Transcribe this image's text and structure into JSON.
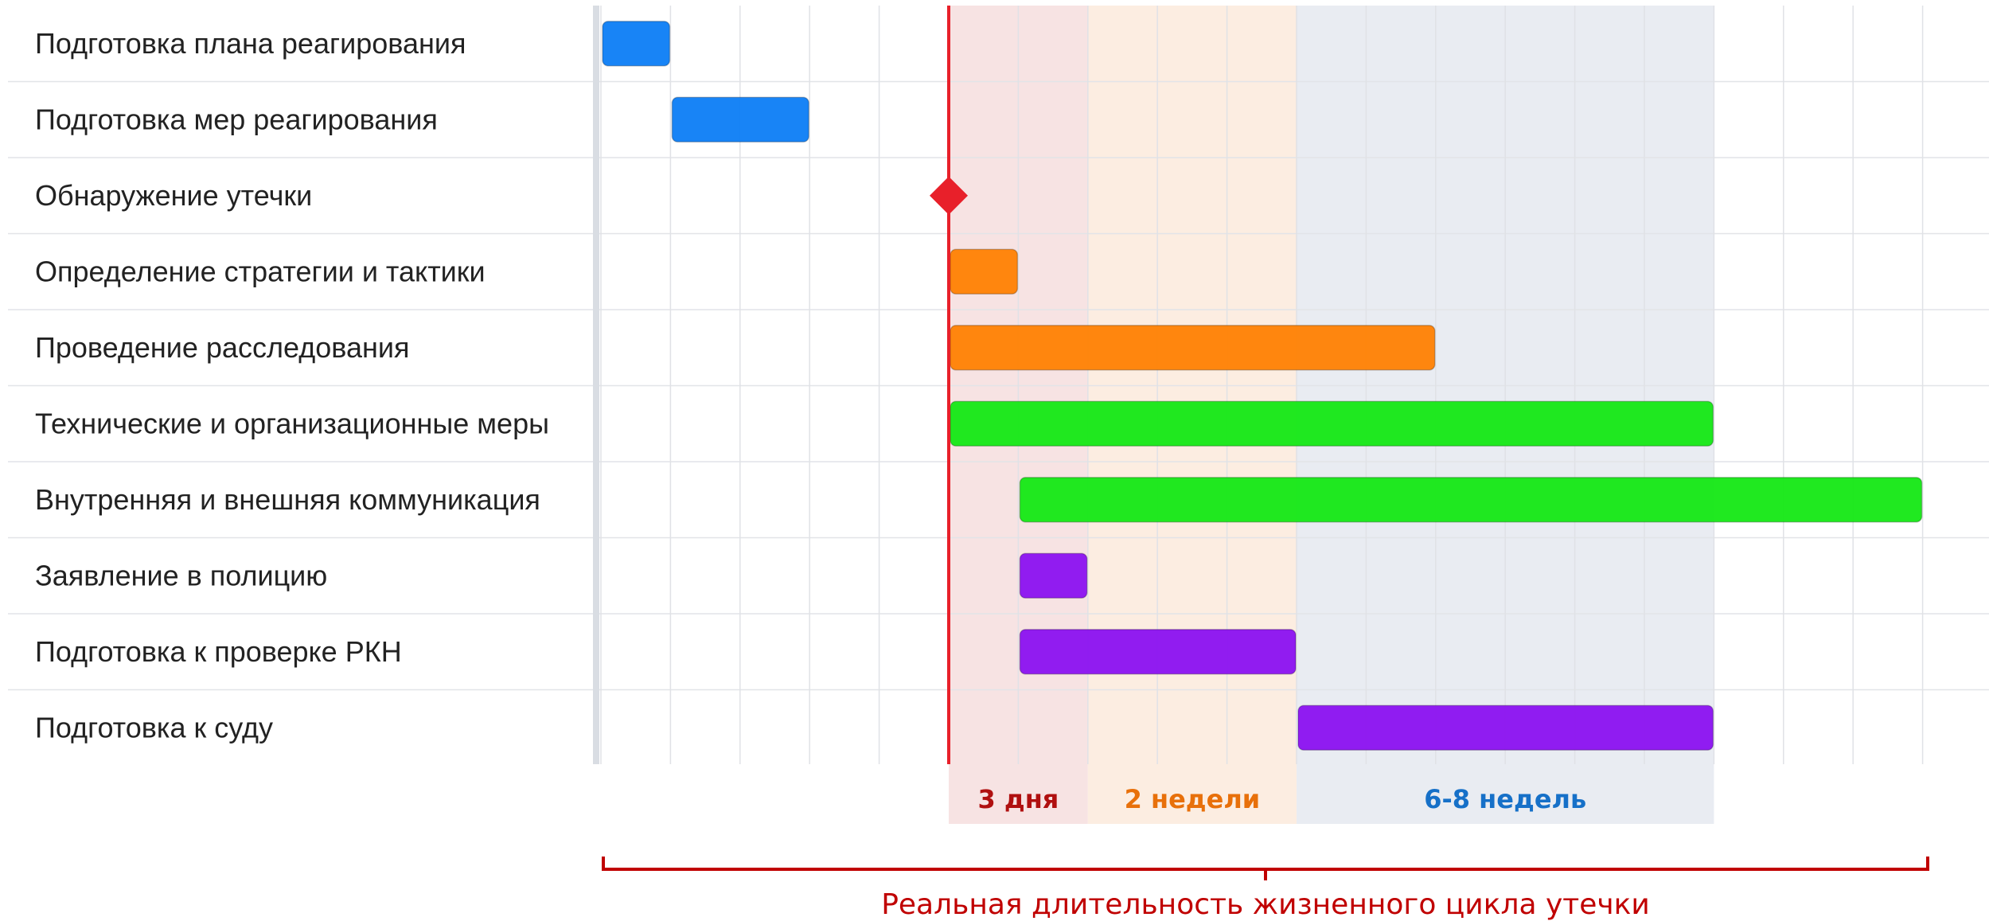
{
  "chart_data": {
    "type": "gantt",
    "x_units": "columns",
    "x_range": [
      0,
      20
    ],
    "grid": true,
    "tasks": [
      {
        "label": "Подготовка плана реагирования",
        "start": 0,
        "end": 1,
        "color": "#0a7cf5",
        "kind": "bar"
      },
      {
        "label": "Подготовка мер реагирования",
        "start": 1,
        "end": 3,
        "color": "#0a7cf5",
        "kind": "bar"
      },
      {
        "label": "Обнаружение утечки",
        "start": 5,
        "end": 5,
        "color": "#e8202a",
        "kind": "milestone"
      },
      {
        "label": "Определение стратегии и тактики",
        "start": 5,
        "end": 6,
        "color": "#ff7f00",
        "kind": "bar"
      },
      {
        "label": "Проведение расследования",
        "start": 5,
        "end": 12,
        "color": "#ff7f00",
        "kind": "bar"
      },
      {
        "label": "Технические и организационные меры",
        "start": 5,
        "end": 16,
        "color": "#12e812",
        "kind": "bar"
      },
      {
        "label": "Внутренняя и внешняя коммуникация",
        "start": 6,
        "end": 19,
        "color": "#12e812",
        "kind": "bar"
      },
      {
        "label": "Заявление в полицию",
        "start": 6,
        "end": 7,
        "color": "#8a0ff0",
        "kind": "bar"
      },
      {
        "label": "Подготовка к проверке РКН",
        "start": 6,
        "end": 10,
        "color": "#8a0ff0",
        "kind": "bar"
      },
      {
        "label": "Подготовка к суду",
        "start": 10,
        "end": 16,
        "color": "#8a0ff0",
        "kind": "bar"
      }
    ],
    "phases": [
      {
        "label": "3 дня",
        "start": 5,
        "end": 7,
        "fill": "#f7e3e3",
        "text_color": "#b01010"
      },
      {
        "label": "2 недели",
        "start": 7,
        "end": 10,
        "fill": "#fcede1",
        "text_color": "#e8700a"
      },
      {
        "label": "6-8 недель",
        "start": 10,
        "end": 16,
        "fill": "#e9ecf2",
        "text_color": "#1670c8"
      }
    ],
    "today_line": 5,
    "today_line_color": "#e8202a",
    "caption": "Реальная длительность жизненного цикла утечки",
    "caption_color": "#c00000"
  }
}
